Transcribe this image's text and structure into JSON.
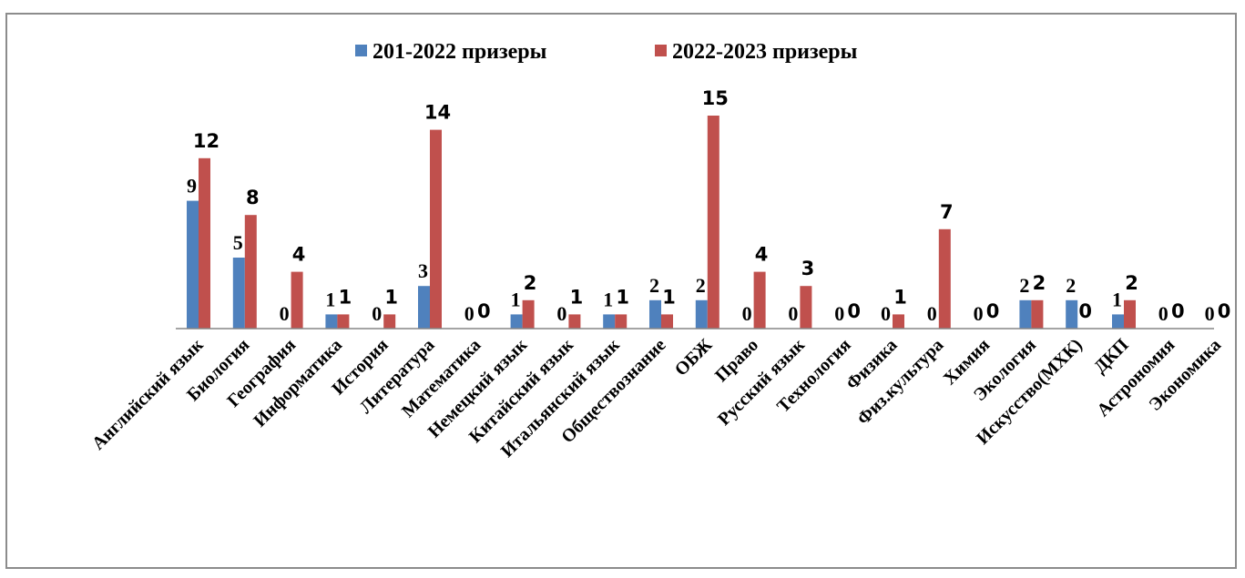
{
  "chart_data": {
    "type": "bar",
    "title": "",
    "xlabel": "",
    "ylabel": "",
    "ylim": [
      0,
      15
    ],
    "grid": false,
    "legend_position": "top",
    "categories": [
      "Английский язык",
      "Биология",
      "География",
      "Информатика",
      "История",
      "Литература",
      "Математика",
      "Немецкий язык",
      "Китайский язык",
      "Итальянский язык",
      "Обществознание",
      "ОБЖ",
      "Право",
      "Русский язык",
      "Технология",
      "Физика",
      "Физ.культура",
      "Химия",
      "Экология",
      "Искусство(МХК)",
      "ДКП",
      "Астрономия",
      "Экономика"
    ],
    "series": [
      {
        "name": "201-2022 призеры",
        "color": "#4f81bd",
        "values": [
          9,
          5,
          0,
          1,
          0,
          3,
          0,
          1,
          0,
          1,
          2,
          2,
          0,
          0,
          0,
          0,
          0,
          0,
          2,
          2,
          1,
          0,
          0
        ]
      },
      {
        "name": "2022-2023 призеры",
        "color": "#c0504d",
        "values": [
          12,
          8,
          4,
          1,
          1,
          14,
          0,
          2,
          1,
          1,
          1,
          15,
          4,
          3,
          0,
          1,
          7,
          0,
          2,
          0,
          2,
          0,
          0
        ]
      }
    ]
  }
}
